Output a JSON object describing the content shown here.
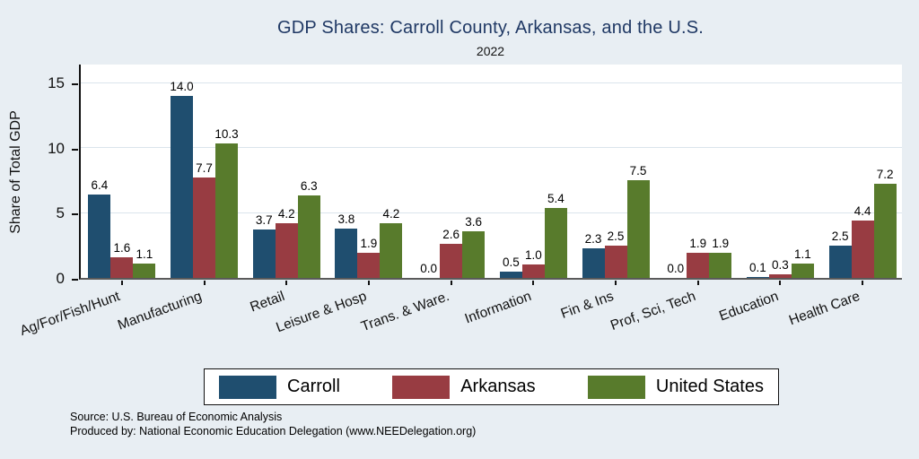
{
  "page": {
    "background": "#e8eef3",
    "plot_background": "#ffffff"
  },
  "chart_data": {
    "type": "bar",
    "title": "GDP Shares: Carroll County, Arkansas, and the U.S.",
    "subtitle": "2022",
    "ylabel": "Share of Total GDP",
    "ylim": [
      0,
      16.5
    ],
    "yticks": [
      0,
      5,
      10,
      15
    ],
    "grid": true,
    "legend_position": "bottom",
    "categories": [
      "Ag/For/Fish/Hunt",
      "Manufacturing",
      "Retail",
      "Leisure & Hosp",
      "Trans. & Ware.",
      "Information",
      "Fin & Ins",
      "Prof, Sci, Tech",
      "Education",
      "Health Care"
    ],
    "series": [
      {
        "name": "Carroll",
        "color": "#1f4e6f",
        "values": [
          6.4,
          14.0,
          3.7,
          3.8,
          0.0,
          0.5,
          2.3,
          0.0,
          0.1,
          2.5
        ]
      },
      {
        "name": "Arkansas",
        "color": "#983c42",
        "values": [
          1.6,
          7.7,
          4.2,
          1.9,
          2.6,
          1.0,
          2.5,
          1.9,
          0.3,
          4.4
        ]
      },
      {
        "name": "United States",
        "color": "#587b2c",
        "values": [
          1.1,
          10.3,
          6.3,
          4.2,
          3.6,
          5.4,
          7.5,
          1.9,
          1.1,
          7.2
        ]
      }
    ],
    "value_label_decimals": 1,
    "title_color": "#1f3864",
    "gridline_color": "#dbe4ec"
  },
  "footnotes": {
    "source": "Source: U.S. Bureau of Economic Analysis",
    "produced": "Produced by: National Economic Education Delegation (www.NEEDelegation.org)"
  }
}
